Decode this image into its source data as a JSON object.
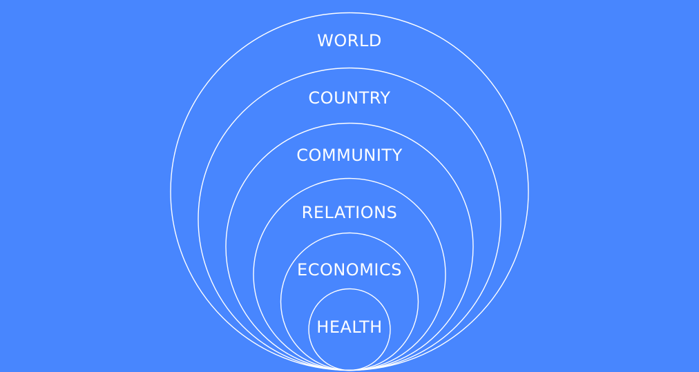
{
  "background_color": "#4886fe",
  "line_color": "#ffffff",
  "rings": [
    {
      "label": "WORLD"
    },
    {
      "label": "COUNTRY"
    },
    {
      "label": "COMMUNITY"
    },
    {
      "label": "RELATIONS"
    },
    {
      "label": "ECONOMICS"
    },
    {
      "label": "HEALTH"
    }
  ]
}
